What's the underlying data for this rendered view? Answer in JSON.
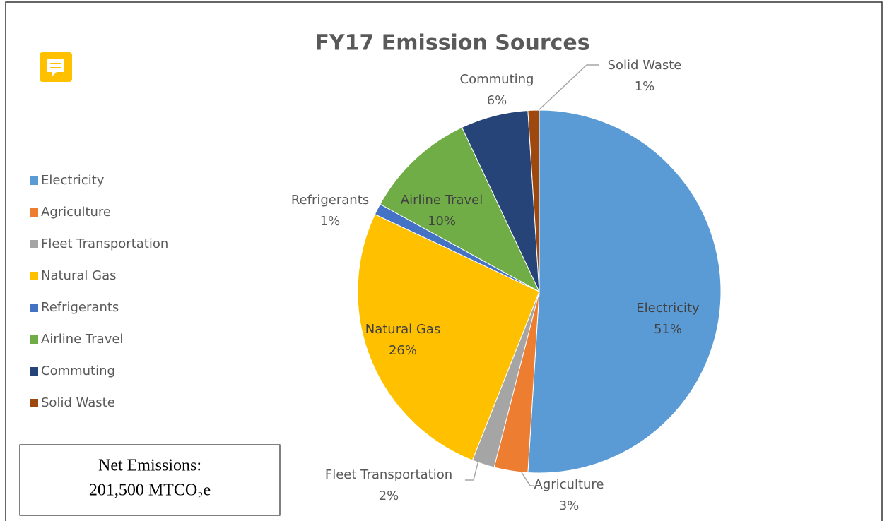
{
  "chart_data": {
    "type": "pie",
    "title": "FY17 Emission Sources",
    "categories": [
      "Electricity",
      "Agriculture",
      "Fleet Transportation",
      "Natural Gas",
      "Refrigerants",
      "Airline Travel",
      "Commuting",
      "Solid Waste"
    ],
    "values": [
      51,
      3,
      2,
      26,
      1,
      10,
      6,
      1
    ],
    "value_labels": [
      "51%",
      "3%",
      "2%",
      "26%",
      "1%",
      "10%",
      "6%",
      "1%"
    ],
    "colors": [
      "#5b9bd5",
      "#ed7d31",
      "#a5a5a5",
      "#ffc000",
      "#4472c4",
      "#70ad47",
      "#264478",
      "#9e480e"
    ],
    "legend": "left",
    "annotations": [
      "Net Emissions:",
      "201,500 MTCO₂e"
    ]
  }
}
